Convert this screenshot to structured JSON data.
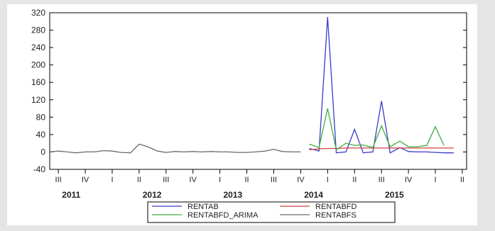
{
  "chart_data": {
    "type": "line",
    "title": "",
    "xlabel": "",
    "ylabel": "",
    "ylim": [
      -40,
      320
    ],
    "yticks": [
      -40,
      0,
      40,
      80,
      120,
      160,
      200,
      240,
      280,
      320
    ],
    "grid": false,
    "legend_position": "bottom-center",
    "x": [
      "2011Q3",
      "2011Q4",
      "2012Q1",
      "2012Q2",
      "2012Q3",
      "2012Q4",
      "2013Q1",
      "2013Q2",
      "2013Q3",
      "2013Q4",
      "2014Q1",
      "2014Q2",
      "2014Q3",
      "2014Q4",
      "2015Q1",
      "2015Q2"
    ],
    "x_ticks": [
      {
        "label": "III",
        "x": 2011.5
      },
      {
        "label": "IV",
        "x": 2011.75
      },
      {
        "label": "I",
        "x": 2012.0
      },
      {
        "label": "II",
        "x": 2012.25
      },
      {
        "label": "III",
        "x": 2012.5
      },
      {
        "label": "IV",
        "x": 2012.75
      },
      {
        "label": "I",
        "x": 2013.0
      },
      {
        "label": "II",
        "x": 2013.25
      },
      {
        "label": "III",
        "x": 2013.5
      },
      {
        "label": "IV",
        "x": 2013.75
      },
      {
        "label": "I",
        "x": 2014.0
      },
      {
        "label": "II",
        "x": 2014.25
      },
      {
        "label": "III",
        "x": 2014.5
      },
      {
        "label": "IV",
        "x": 2014.75
      },
      {
        "label": "I",
        "x": 2015.0
      },
      {
        "label": "II",
        "x": 2015.25
      }
    ],
    "x_years": [
      {
        "label": "2011",
        "x": 2011.62
      },
      {
        "label": "2012",
        "x": 2012.37
      },
      {
        "label": "2013",
        "x": 2013.12
      },
      {
        "label": "2014",
        "x": 2013.87
      },
      {
        "label": "2015",
        "x": 2014.62
      }
    ],
    "x_range": [
      2011.42,
      2015.29
    ],
    "series": [
      {
        "name": "RENTAB",
        "color": "#3b3bcc",
        "points": [
          [
            2013.83,
            8
          ],
          [
            2013.92,
            2
          ],
          [
            2014.0,
            310
          ],
          [
            2014.08,
            -2
          ],
          [
            2014.17,
            0
          ],
          [
            2014.25,
            52
          ],
          [
            2014.33,
            -2
          ],
          [
            2014.42,
            0
          ],
          [
            2014.5,
            117
          ],
          [
            2014.58,
            -2
          ],
          [
            2014.67,
            10
          ],
          [
            2014.75,
            1
          ],
          [
            2014.83,
            0
          ],
          [
            2014.92,
            0
          ],
          [
            2015.0,
            -1
          ],
          [
            2015.08,
            -2
          ],
          [
            2015.17,
            -2
          ]
        ]
      },
      {
        "name": "RENTABFD",
        "color": "#d04040",
        "points": [
          [
            2013.83,
            5
          ],
          [
            2013.92,
            7
          ],
          [
            2014.0,
            8
          ],
          [
            2014.08,
            8
          ],
          [
            2014.17,
            9
          ],
          [
            2014.25,
            9
          ],
          [
            2014.33,
            9
          ],
          [
            2014.42,
            9
          ],
          [
            2014.5,
            9
          ],
          [
            2014.58,
            9
          ],
          [
            2014.67,
            9
          ],
          [
            2014.75,
            9
          ],
          [
            2014.83,
            9
          ],
          [
            2014.92,
            9
          ],
          [
            2015.0,
            9
          ],
          [
            2015.08,
            9
          ],
          [
            2015.17,
            9
          ]
        ]
      },
      {
        "name": "RENTABFD_ARIMA",
        "color": "#3fae3f",
        "points": [
          [
            2013.83,
            18
          ],
          [
            2013.92,
            10
          ],
          [
            2014.0,
            100
          ],
          [
            2014.08,
            5
          ],
          [
            2014.17,
            20
          ],
          [
            2014.25,
            15
          ],
          [
            2014.33,
            16
          ],
          [
            2014.42,
            10
          ],
          [
            2014.5,
            60
          ],
          [
            2014.58,
            12
          ],
          [
            2014.67,
            25
          ],
          [
            2014.75,
            12
          ],
          [
            2014.83,
            12
          ],
          [
            2014.92,
            15
          ],
          [
            2015.0,
            58
          ],
          [
            2015.08,
            15
          ]
        ]
      },
      {
        "name": "RENTABFS",
        "color": "#6a6a6a",
        "points": [
          [
            2011.42,
            0
          ],
          [
            2011.5,
            2
          ],
          [
            2011.58,
            0
          ],
          [
            2011.67,
            -2
          ],
          [
            2011.75,
            0
          ],
          [
            2011.83,
            0
          ],
          [
            2011.92,
            3
          ],
          [
            2012.0,
            2
          ],
          [
            2012.08,
            -1
          ],
          [
            2012.17,
            -2
          ],
          [
            2012.25,
            18
          ],
          [
            2012.33,
            12
          ],
          [
            2012.42,
            2
          ],
          [
            2012.5,
            -1
          ],
          [
            2012.58,
            1
          ],
          [
            2012.67,
            0
          ],
          [
            2012.75,
            1
          ],
          [
            2012.83,
            0
          ],
          [
            2012.92,
            1
          ],
          [
            2013.0,
            0
          ],
          [
            2013.08,
            0
          ],
          [
            2013.17,
            -1
          ],
          [
            2013.25,
            -1
          ],
          [
            2013.33,
            0
          ],
          [
            2013.42,
            2
          ],
          [
            2013.5,
            6
          ],
          [
            2013.58,
            1
          ],
          [
            2013.67,
            0
          ],
          [
            2013.75,
            0
          ]
        ]
      }
    ]
  }
}
